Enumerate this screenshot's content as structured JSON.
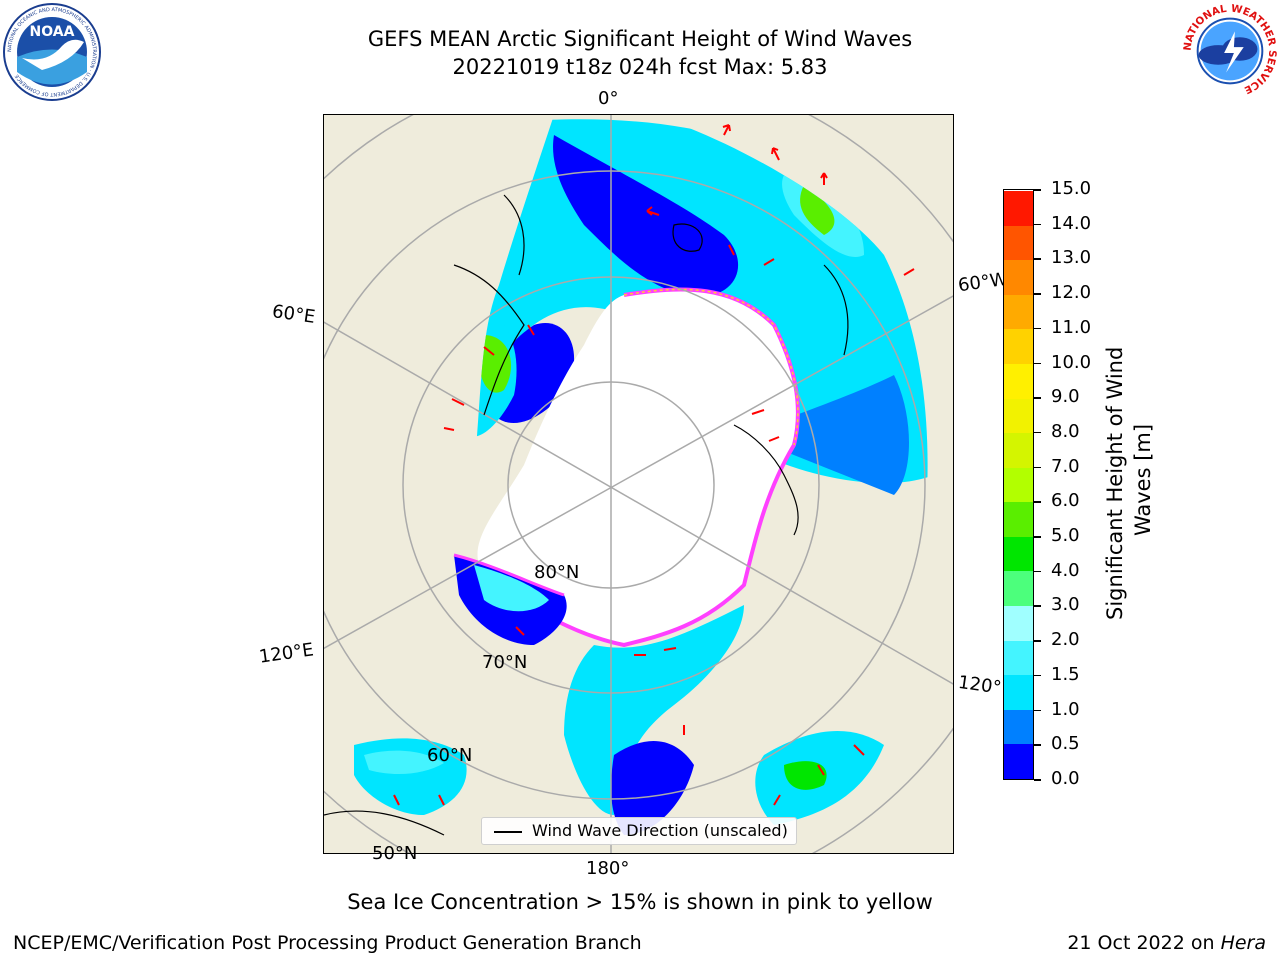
{
  "title": {
    "line1": "GEFS MEAN Arctic Significant Height of Wind Waves",
    "line2": "20221019 t18z 024h fcst   Max: 5.83"
  },
  "map": {
    "longitude_labels": {
      "lon_0": "0°",
      "lon_60w": "60°W",
      "lon_60e": "60°E",
      "lon_120e": "120°E",
      "lon_120w": "120°W",
      "lon_180": "180°"
    },
    "latitude_labels": {
      "lat_80": "80°N",
      "lat_70": "70°N",
      "lat_60": "60°N",
      "lat_50": "50°N"
    },
    "legend_label": "Wind Wave Direction (unscaled)",
    "colors": {
      "land": "#efecdc",
      "ice_edge": [
        "#ff40ff",
        "#ff9ecc",
        "#ffcc33"
      ],
      "arrow": "#ff0000",
      "grid": "#aaaaaa"
    }
  },
  "colorbar": {
    "title": "Significant Height of Wind Waves [m]",
    "ticks": [
      "0.0",
      "0.5",
      "1.0",
      "1.5",
      "2.0",
      "3.0",
      "4.0",
      "5.0",
      "6.0",
      "7.0",
      "8.0",
      "9.0",
      "10.0",
      "11.0",
      "12.0",
      "13.0",
      "14.0",
      "15.0"
    ],
    "colors": [
      "#0000ff",
      "#0080ff",
      "#00e5ff",
      "#44f4ff",
      "#a0ffff",
      "#4cff7c",
      "#00e600",
      "#5aee00",
      "#b2ff00",
      "#d4f500",
      "#f2f200",
      "#fff000",
      "#ffd200",
      "#ffaa00",
      "#ff8800",
      "#ff5500",
      "#ff1800"
    ]
  },
  "footer": {
    "sea_ice_note": "Sea Ice Concentration > 15% is shown in pink to yellow",
    "left": "NCEP/EMC/Verification Post Processing Product Generation Branch",
    "right_date": "21 Oct 2022 on ",
    "right_host": "Hera"
  },
  "logos": {
    "noaa_text": "NOAA",
    "nws_ring_text": "NATIONAL WEATHER SERVICE",
    "noaa_ring_text": "NATIONAL OCEANIC AND ATMOSPHERIC ADMINISTRATION · U.S. DEPARTMENT OF COMMERCE"
  }
}
